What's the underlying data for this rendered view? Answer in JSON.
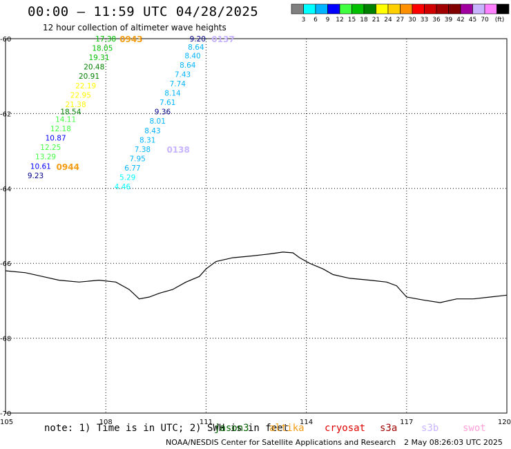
{
  "title": "00:00 – 11:59 UTC 04/28/2025",
  "subtitle": "12 hour collection of altimeter wave heights",
  "note": "note: 1) Time is in UTC; 2) SWH is in feet",
  "credit": "NOAA/NESDIS Center for Satellite Applications and Research",
  "credit_time": "2 May 08:26:03 UTC 2025",
  "satellites": [
    {
      "name": "jason3",
      "color": "#006400"
    },
    {
      "name": "altika",
      "color": "#f39c12"
    },
    {
      "name": "cryosat",
      "color": "#e00000"
    },
    {
      "name": "s3a",
      "color": "#a00000"
    },
    {
      "name": "s3b",
      "color": "#c8b4ff"
    },
    {
      "name": "swot",
      "color": "#ff9fd8"
    }
  ],
  "color_scale": {
    "unit": "(ft)",
    "labels": [
      "3",
      "6",
      "9",
      "12",
      "15",
      "18",
      "21",
      "24",
      "27",
      "30",
      "33",
      "36",
      "39",
      "42",
      "45",
      "70"
    ],
    "colors": [
      "#808080",
      "#00ffff",
      "#00b4ff",
      "#0000ff",
      "#40ff40",
      "#00c000",
      "#008000",
      "#ffff00",
      "#ffd000",
      "#ff9000",
      "#ff0000",
      "#d00000",
      "#a00000",
      "#800000",
      "#a000a0",
      "#c8b4ff",
      "#ff80ff",
      "#000000"
    ]
  },
  "chart_data": {
    "type": "scatter",
    "title": "00:00 – 11:59 UTC 04/28/2025",
    "xlim": [
      105,
      120
    ],
    "ylim": [
      -70,
      -60
    ],
    "x_ticks": [
      "105",
      "108",
      "111",
      "114",
      "117",
      "120"
    ],
    "y_ticks": [
      "-60",
      "-62",
      "-64",
      "-66",
      "-68",
      "-70"
    ],
    "grid": true,
    "tracks": [
      {
        "time_label": "0943",
        "end_time_label": "0944",
        "label_color": "#f39c12",
        "points": [
          {
            "lon": 108.0,
            "lat": -60.0,
            "swh": "17.38",
            "color": "#00c000"
          },
          {
            "lon": 107.9,
            "lat": -60.25,
            "swh": "18.05",
            "color": "#00c000"
          },
          {
            "lon": 107.8,
            "lat": -60.5,
            "swh": "19.31",
            "color": "#00c000"
          },
          {
            "lon": 107.65,
            "lat": -60.75,
            "swh": "20.48",
            "color": "#008000"
          },
          {
            "lon": 107.5,
            "lat": -61.0,
            "swh": "20.91",
            "color": "#008000"
          },
          {
            "lon": 107.4,
            "lat": -61.25,
            "swh": "22.19",
            "color": "#ffff00"
          },
          {
            "lon": 107.25,
            "lat": -61.5,
            "swh": "22.95",
            "color": "#ffff00"
          },
          {
            "lon": 107.1,
            "lat": -61.75,
            "swh": "21.38",
            "color": "#ffff00"
          },
          {
            "lon": 106.95,
            "lat": -61.95,
            "swh": "18.54",
            "color": "#008000"
          },
          {
            "lon": 106.8,
            "lat": -62.15,
            "swh": "14.11",
            "color": "#40ff40"
          },
          {
            "lon": 106.65,
            "lat": -62.4,
            "swh": "12.18",
            "color": "#40ff40"
          },
          {
            "lon": 106.5,
            "lat": -62.65,
            "swh": "10.87",
            "color": "#0000ff"
          },
          {
            "lon": 106.35,
            "lat": -62.9,
            "swh": "12.25",
            "color": "#40ff40"
          },
          {
            "lon": 106.2,
            "lat": -63.15,
            "swh": "13.29",
            "color": "#40ff40"
          },
          {
            "lon": 106.05,
            "lat": -63.4,
            "swh": "10.61",
            "color": "#0000ff"
          },
          {
            "lon": 105.9,
            "lat": -63.65,
            "swh": "9.23",
            "color": "#00008b"
          }
        ]
      },
      {
        "time_label": "0137",
        "end_time_label": "0138",
        "label_color": "#c8b4ff",
        "points": [
          {
            "lon": 110.75,
            "lat": -60.0,
            "swh": "9.20",
            "color": "#00008b"
          },
          {
            "lon": 110.7,
            "lat": -60.22,
            "swh": "8.64",
            "color": "#00b4ff"
          },
          {
            "lon": 110.6,
            "lat": -60.45,
            "swh": "8.40",
            "color": "#00b4ff"
          },
          {
            "lon": 110.45,
            "lat": -60.7,
            "swh": "8.64",
            "color": "#00b4ff"
          },
          {
            "lon": 110.3,
            "lat": -60.95,
            "swh": "7.43",
            "color": "#00b4ff"
          },
          {
            "lon": 110.15,
            "lat": -61.2,
            "swh": "7.74",
            "color": "#00b4ff"
          },
          {
            "lon": 110.0,
            "lat": -61.45,
            "swh": "8.14",
            "color": "#00b4ff"
          },
          {
            "lon": 109.85,
            "lat": -61.7,
            "swh": "7.61",
            "color": "#00b4ff"
          },
          {
            "lon": 109.7,
            "lat": -61.95,
            "swh": "9.36",
            "color": "#00008b"
          },
          {
            "lon": 109.55,
            "lat": -62.2,
            "swh": "8.01",
            "color": "#00b4ff"
          },
          {
            "lon": 109.4,
            "lat": -62.45,
            "swh": "8.43",
            "color": "#00b4ff"
          },
          {
            "lon": 109.25,
            "lat": -62.7,
            "swh": "8.31",
            "color": "#00b4ff"
          },
          {
            "lon": 109.1,
            "lat": -62.95,
            "swh": "7.38",
            "color": "#00b4ff"
          },
          {
            "lon": 108.95,
            "lat": -63.2,
            "swh": "7.95",
            "color": "#00b4ff"
          },
          {
            "lon": 108.8,
            "lat": -63.45,
            "swh": "6.77",
            "color": "#00b4ff"
          },
          {
            "lon": 108.65,
            "lat": -63.7,
            "swh": "5.29",
            "color": "#00ffff"
          },
          {
            "lon": 108.5,
            "lat": -63.95,
            "swh": "4.46",
            "color": "#00ffff"
          }
        ]
      }
    ],
    "coastline": [
      [
        105.0,
        -66.2
      ],
      [
        105.6,
        -66.25
      ],
      [
        106.1,
        -66.35
      ],
      [
        106.6,
        -66.45
      ],
      [
        107.2,
        -66.5
      ],
      [
        107.8,
        -66.45
      ],
      [
        108.3,
        -66.5
      ],
      [
        108.7,
        -66.7
      ],
      [
        109.0,
        -66.95
      ],
      [
        109.3,
        -66.9
      ],
      [
        109.6,
        -66.8
      ],
      [
        110.0,
        -66.7
      ],
      [
        110.4,
        -66.5
      ],
      [
        110.8,
        -66.35
      ],
      [
        111.0,
        -66.15
      ],
      [
        111.3,
        -65.95
      ],
      [
        111.8,
        -65.85
      ],
      [
        112.4,
        -65.8
      ],
      [
        112.9,
        -65.75
      ],
      [
        113.3,
        -65.7
      ],
      [
        113.6,
        -65.72
      ],
      [
        113.8,
        -65.85
      ],
      [
        114.1,
        -66.0
      ],
      [
        114.5,
        -66.15
      ],
      [
        114.8,
        -66.3
      ],
      [
        115.3,
        -66.4
      ],
      [
        115.9,
        -66.45
      ],
      [
        116.4,
        -66.5
      ],
      [
        116.7,
        -66.6
      ],
      [
        117.0,
        -66.9
      ],
      [
        117.5,
        -66.98
      ],
      [
        118.0,
        -67.05
      ],
      [
        118.5,
        -66.95
      ],
      [
        119.0,
        -66.95
      ],
      [
        119.5,
        -66.9
      ],
      [
        120.0,
        -66.85
      ]
    ]
  }
}
